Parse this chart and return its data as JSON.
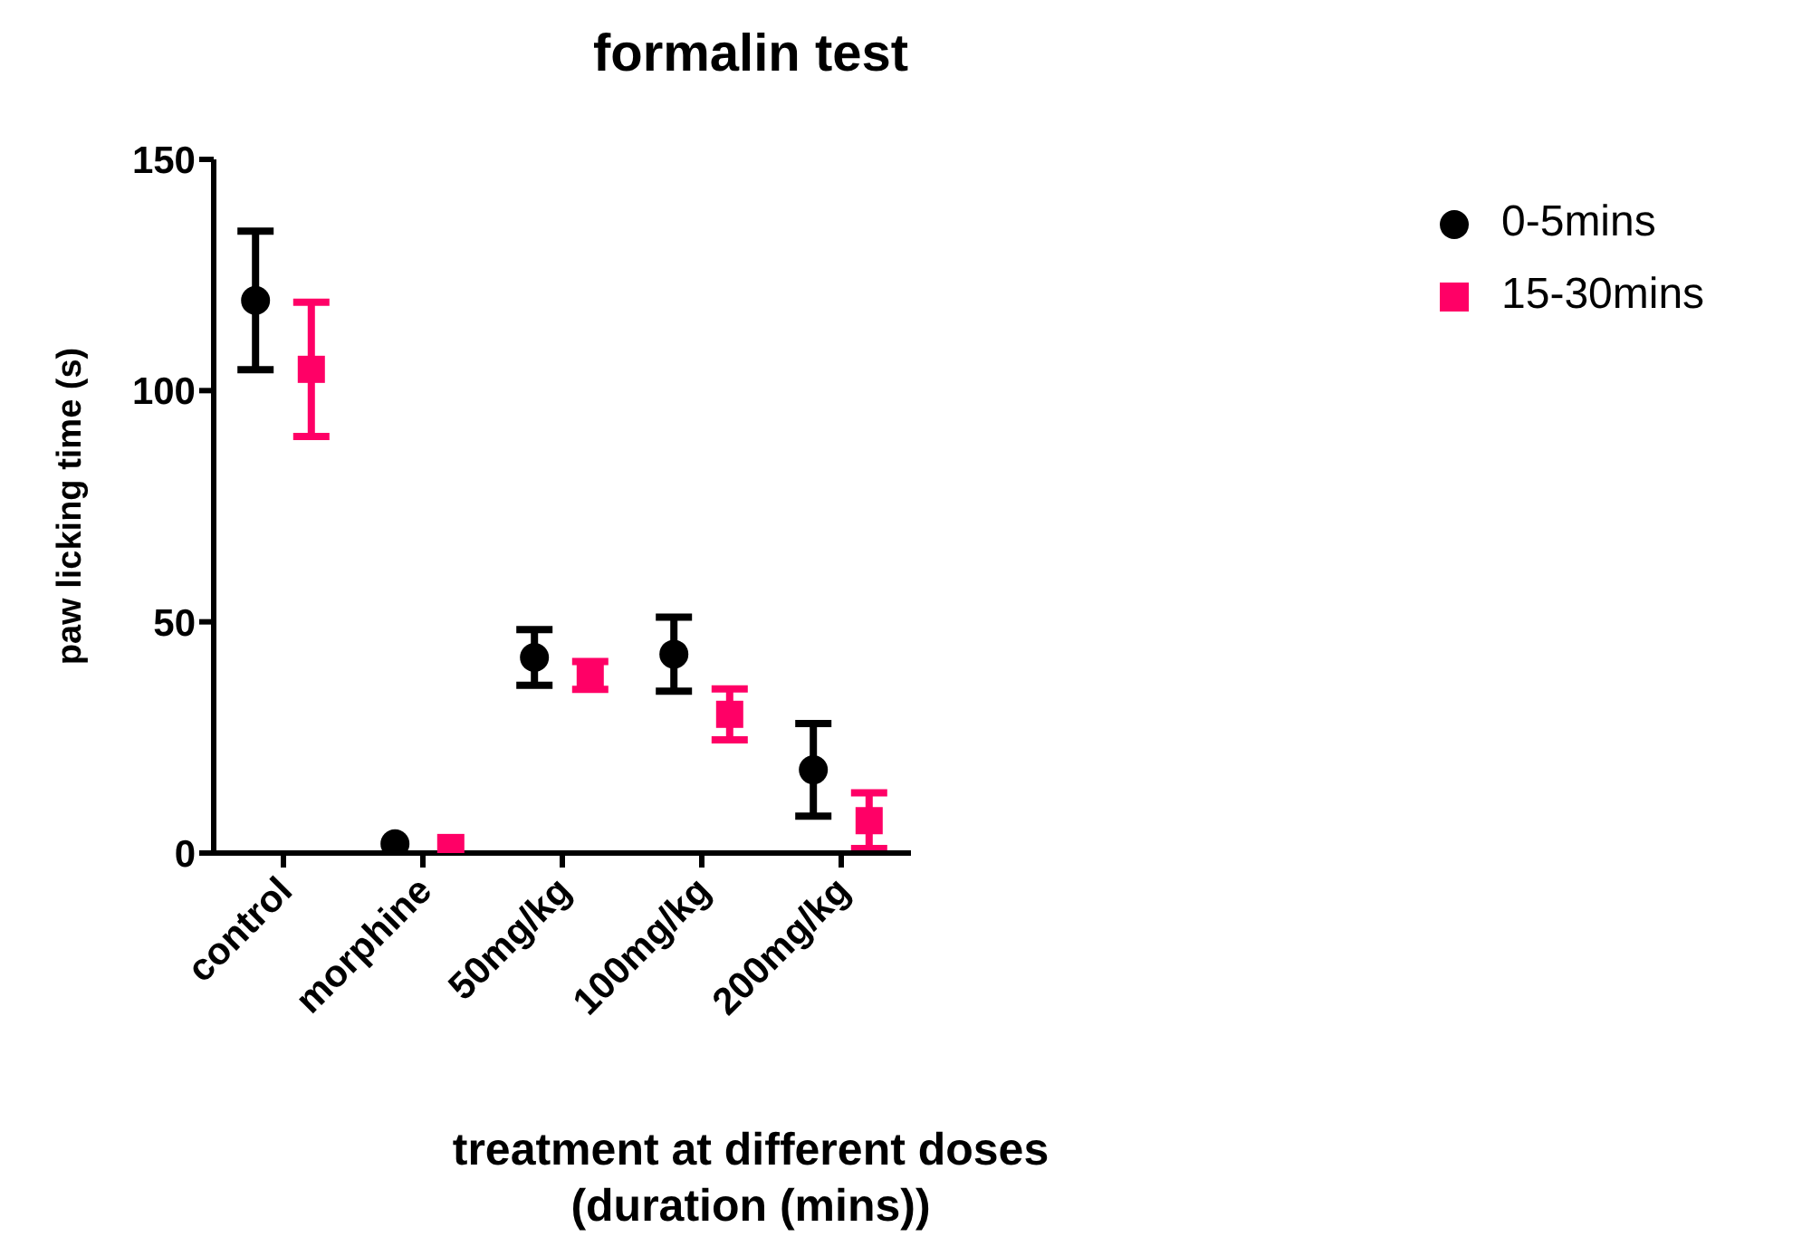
{
  "chart_data": {
    "type": "scatter",
    "title": "formalin test",
    "xlabel": "treatment at different doses\n(duration (mins))",
    "ylabel": "paw licking time (s)",
    "categories": [
      "control",
      "morphine",
      "50mg/kg",
      "100mg/kg",
      "200mg/kg"
    ],
    "series": [
      {
        "name": "0-5mins",
        "color": "#000000",
        "marker": "circle",
        "values": [
          119.5,
          2,
          42.3,
          43,
          18
        ],
        "errors": [
          15,
          null,
          6,
          8,
          10
        ]
      },
      {
        "name": "15-30mins",
        "color": "#ff0066",
        "marker": "square",
        "values": [
          104.6,
          1.2,
          38.4,
          30,
          7
        ],
        "errors": [
          14.5,
          null,
          3,
          5.5,
          6
        ]
      }
    ],
    "ylim": [
      0,
      150
    ],
    "yticks": [
      0,
      50,
      100,
      150
    ],
    "grid": false,
    "legend": "top right"
  }
}
